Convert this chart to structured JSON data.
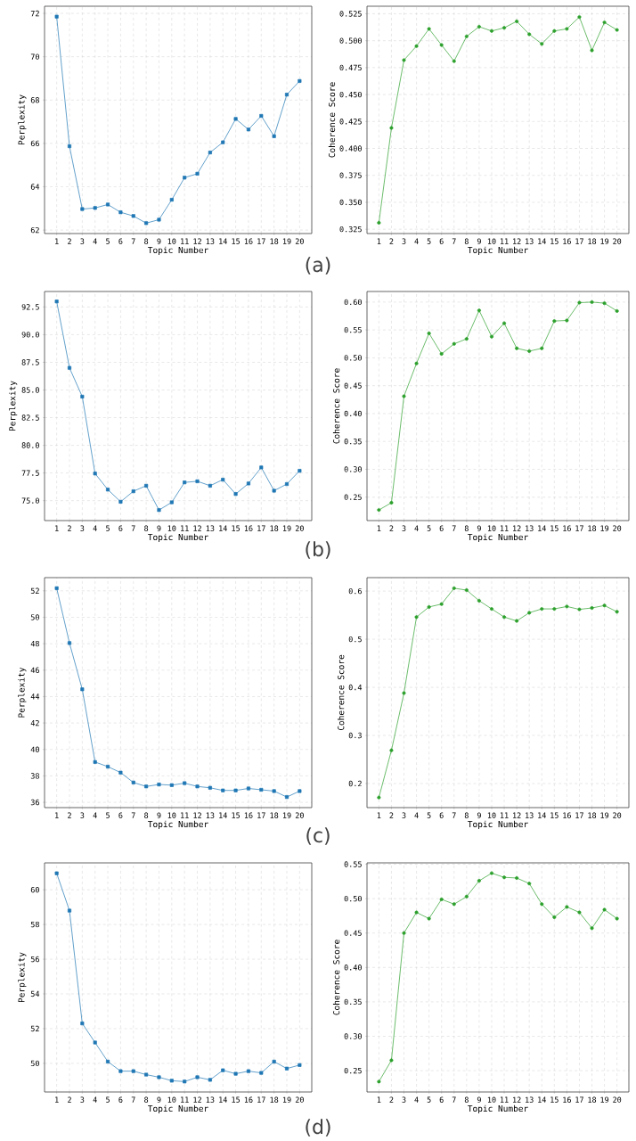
{
  "chart_data": [
    {
      "type": "line",
      "xlabel": "Topic Number",
      "ylabel": "Perplexity",
      "categories": [
        "1",
        "2",
        "3",
        "4",
        "5",
        "6",
        "7",
        "8",
        "9",
        "10",
        "11",
        "12",
        "13",
        "14",
        "15",
        "16",
        "17",
        "18",
        "19",
        "20"
      ],
      "values": [
        71.85,
        65.87,
        62.97,
        63.02,
        63.18,
        62.82,
        62.65,
        62.32,
        62.48,
        63.4,
        64.42,
        64.6,
        65.58,
        66.05,
        67.13,
        66.64,
        67.27,
        66.33,
        68.25,
        68.88
      ],
      "color": "#1f77b4",
      "marker": "square",
      "grid": true,
      "ylim": [
        61.84,
        72.33
      ],
      "yticks": [
        62,
        64,
        66,
        68,
        70,
        72
      ],
      "annotations": [
        "(a)"
      ]
    },
    {
      "type": "line",
      "xlabel": "Topic Number",
      "ylabel": "Coherence Score",
      "categories": [
        "1",
        "2",
        "3",
        "4",
        "5",
        "6",
        "7",
        "8",
        "9",
        "10",
        "11",
        "12",
        "13",
        "14",
        "15",
        "16",
        "17",
        "18",
        "19",
        "20"
      ],
      "values": [
        0.331,
        0.419,
        0.482,
        0.495,
        0.511,
        0.496,
        0.481,
        0.504,
        0.513,
        0.509,
        0.512,
        0.518,
        0.506,
        0.497,
        0.509,
        0.511,
        0.522,
        0.491,
        0.517,
        0.51
      ],
      "color": "#2ca02c",
      "marker": "circle",
      "grid": true,
      "ylim": [
        0.321,
        0.532
      ],
      "yticks": [
        0.325,
        {
          "value": 0.35,
          "label": "0.350"
        },
        0.375,
        {
          "value": 0.4,
          "label": "0.400"
        },
        0.425,
        {
          "value": 0.45,
          "label": "0.450"
        },
        0.475,
        {
          "value": 0.5,
          "label": "0.500"
        },
        0.525
      ]
    },
    {
      "type": "line",
      "xlabel": "Topic Number",
      "ylabel": "Perplexity",
      "categories": [
        "1",
        "2",
        "3",
        "4",
        "5",
        "6",
        "7",
        "8",
        "9",
        "10",
        "11",
        "12",
        "13",
        "14",
        "15",
        "16",
        "17",
        "18",
        "19",
        "20"
      ],
      "values": [
        93.0,
        87.0,
        84.4,
        77.45,
        76.0,
        74.9,
        75.85,
        76.35,
        74.15,
        74.85,
        76.65,
        76.75,
        76.35,
        76.9,
        75.6,
        76.55,
        78.0,
        75.9,
        76.5,
        77.7
      ],
      "color": "#1f77b4",
      "marker": "square",
      "grid": true,
      "ylim": [
        73.2,
        93.9
      ],
      "yticks": [
        {
          "value": 75,
          "label": "75.0"
        },
        77.5,
        {
          "value": 80,
          "label": "80.0"
        },
        82.5,
        {
          "value": 85,
          "label": "85.0"
        },
        87.5,
        {
          "value": 90,
          "label": "90.0"
        },
        92.5
      ],
      "annotations": [
        "(b)"
      ]
    },
    {
      "type": "line",
      "xlabel": "Topic Number",
      "ylabel": "Coherence Score",
      "categories": [
        "1",
        "2",
        "3",
        "4",
        "5",
        "6",
        "7",
        "8",
        "9",
        "10",
        "11",
        "12",
        "13",
        "14",
        "15",
        "16",
        "17",
        "18",
        "19",
        "20"
      ],
      "values": [
        0.227,
        0.24,
        0.431,
        0.49,
        0.544,
        0.507,
        0.525,
        0.534,
        0.585,
        0.538,
        0.562,
        0.517,
        0.512,
        0.517,
        0.566,
        0.567,
        0.599,
        0.6,
        0.598,
        0.584
      ],
      "color": "#2ca02c",
      "marker": "circle",
      "grid": true,
      "ylim": [
        0.208,
        0.619
      ],
      "yticks": [
        0.25,
        {
          "value": 0.3,
          "label": "0.30"
        },
        0.35,
        {
          "value": 0.4,
          "label": "0.40"
        },
        0.45,
        {
          "value": 0.5,
          "label": "0.50"
        },
        0.55,
        {
          "value": 0.6,
          "label": "0.60"
        }
      ]
    },
    {
      "type": "line",
      "xlabel": "Topic Number",
      "ylabel": "Perplexity",
      "categories": [
        "1",
        "2",
        "3",
        "4",
        "5",
        "6",
        "7",
        "8",
        "9",
        "10",
        "11",
        "12",
        "13",
        "14",
        "15",
        "16",
        "17",
        "18",
        "19",
        "20"
      ],
      "values": [
        52.2,
        48.05,
        44.55,
        39.05,
        38.7,
        38.25,
        37.5,
        37.2,
        37.35,
        37.3,
        37.45,
        37.2,
        37.1,
        36.9,
        36.9,
        37.05,
        36.95,
        36.85,
        36.4,
        36.85
      ],
      "color": "#1f77b4",
      "marker": "square",
      "grid": true,
      "ylim": [
        35.6,
        53.0
      ],
      "yticks": [
        36,
        38,
        40,
        42,
        44,
        46,
        48,
        50,
        52
      ],
      "annotations": [
        "(c)"
      ]
    },
    {
      "type": "line",
      "xlabel": "Topic Number",
      "ylabel": "Coherence Score",
      "categories": [
        "1",
        "2",
        "3",
        "4",
        "5",
        "6",
        "7",
        "8",
        "9",
        "10",
        "11",
        "12",
        "13",
        "14",
        "15",
        "16",
        "17",
        "18",
        "19",
        "20"
      ],
      "values": [
        0.171,
        0.269,
        0.388,
        0.546,
        0.567,
        0.573,
        0.606,
        0.602,
        0.58,
        0.563,
        0.546,
        0.538,
        0.555,
        0.563,
        0.563,
        0.568,
        0.562,
        0.565,
        0.57,
        0.557
      ],
      "color": "#2ca02c",
      "marker": "circle",
      "grid": true,
      "ylim": [
        0.15,
        0.628
      ],
      "yticks": [
        0.2,
        0.3,
        0.4,
        0.5,
        0.6
      ]
    },
    {
      "type": "line",
      "xlabel": "Topic Number",
      "ylabel": "Perplexity",
      "categories": [
        "1",
        "2",
        "3",
        "4",
        "5",
        "6",
        "7",
        "8",
        "9",
        "10",
        "11",
        "12",
        "13",
        "14",
        "15",
        "16",
        "17",
        "18",
        "19",
        "20"
      ],
      "values": [
        60.95,
        58.8,
        52.3,
        51.2,
        50.1,
        49.55,
        49.55,
        49.35,
        49.2,
        49.0,
        48.95,
        49.2,
        49.05,
        49.6,
        49.4,
        49.55,
        49.45,
        50.1,
        49.7,
        49.9
      ],
      "color": "#1f77b4",
      "marker": "square",
      "grid": true,
      "ylim": [
        48.35,
        61.55
      ],
      "yticks": [
        50,
        52,
        54,
        56,
        58,
        60
      ],
      "annotations": [
        "(d)"
      ]
    },
    {
      "type": "line",
      "xlabel": "Topic Number",
      "ylabel": "Coherence Score",
      "categories": [
        "1",
        "2",
        "3",
        "4",
        "5",
        "6",
        "7",
        "8",
        "9",
        "10",
        "11",
        "12",
        "13",
        "14",
        "15",
        "16",
        "17",
        "18",
        "19",
        "20"
      ],
      "values": [
        0.234,
        0.265,
        0.45,
        0.48,
        0.471,
        0.499,
        0.492,
        0.503,
        0.526,
        0.537,
        0.531,
        0.53,
        0.522,
        0.492,
        0.473,
        0.488,
        0.48,
        0.457,
        0.484,
        0.471
      ],
      "color": "#2ca02c",
      "marker": "circle",
      "grid": true,
      "ylim": [
        0.219,
        0.552
      ],
      "yticks": [
        0.25,
        {
          "value": 0.3,
          "label": "0.30"
        },
        0.35,
        {
          "value": 0.4,
          "label": "0.40"
        },
        0.45,
        {
          "value": 0.5,
          "label": "0.50"
        },
        0.55
      ]
    }
  ]
}
